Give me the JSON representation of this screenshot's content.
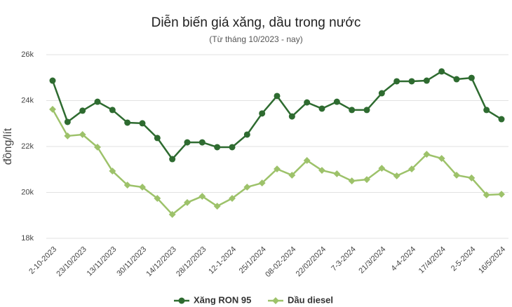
{
  "chart_data": {
    "type": "line",
    "title": "Diễn biến giá xăng, dầu trong nước",
    "subtitle": "(Từ tháng 10/2023 - nay)",
    "y_label": "đồng/lít",
    "categories": [
      "2-10-2023",
      null,
      "23/10/2023",
      null,
      "13/11/2023",
      null,
      "30/11/2023",
      null,
      "14/12/2023",
      null,
      "28/12/2023",
      null,
      "12-1-2024",
      null,
      "25/1/2024",
      null,
      "08-02-2024",
      null,
      "22/02/2024",
      null,
      "7-3-2024",
      null,
      "21/3/2024",
      null,
      "4-4-2024",
      null,
      "17/4/2024",
      null,
      "2-5-2024",
      null,
      "16/5/2024"
    ],
    "series": [
      {
        "name": "Xăng RON 95",
        "color": "#2e6b30",
        "values": [
          24870,
          23070,
          23560,
          23950,
          23590,
          23040,
          23010,
          22370,
          21450,
          22180,
          22180,
          21970,
          21970,
          22520,
          23440,
          24200,
          23310,
          23920,
          23650,
          23950,
          23590,
          23590,
          24320,
          24840,
          24840,
          24870,
          25270,
          24930,
          24990,
          23590,
          23190
        ]
      },
      {
        "name": "Dầu diesel",
        "color": "#9dc26a",
        "values": [
          23620,
          22460,
          22520,
          21970,
          20930,
          20320,
          20230,
          19740,
          19040,
          19560,
          19830,
          19400,
          19740,
          20230,
          20410,
          21020,
          20750,
          21390,
          20960,
          20810,
          20500,
          20560,
          21050,
          20720,
          21020,
          21660,
          21480,
          20750,
          20630,
          19890,
          19920
        ]
      }
    ],
    "ylim": [
      18000,
      26000
    ],
    "yticks": [
      {
        "value": 18000,
        "label": "18k"
      },
      {
        "value": 20000,
        "label": "20k"
      },
      {
        "value": 22000,
        "label": "22k"
      },
      {
        "value": 24000,
        "label": "24k"
      },
      {
        "value": 26000,
        "label": "26k"
      }
    ],
    "grid": true,
    "legend": "bottom"
  }
}
